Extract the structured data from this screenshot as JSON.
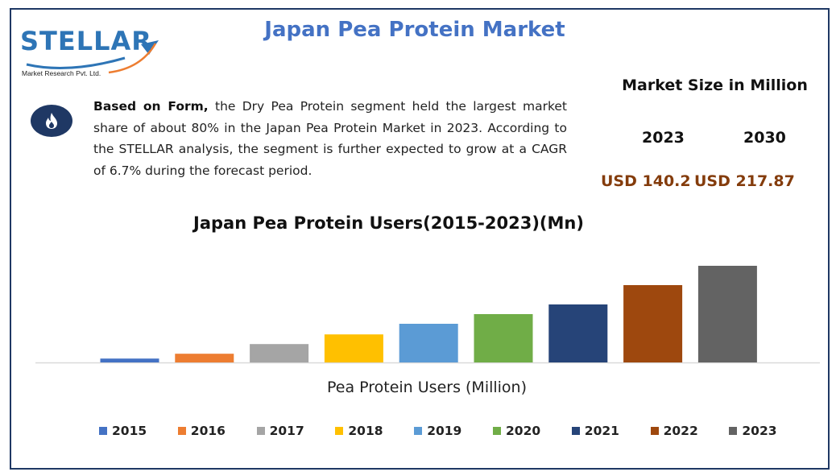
{
  "header": {
    "logo_text": "STELLAR",
    "logo_subtext": "Market Research Pvt. Ltd.",
    "title": "Japan Pea Protein Market"
  },
  "description": {
    "bold_lead": "Based on Form,",
    "text": " the Dry Pea Protein segment held the largest market share of about 80% in the Japan Pea Protein Market in 2023.  According to the STELLAR analysis, the segment is further expected to grow at a CAGR of 6.7% during the forecast period.",
    "icon": "flame-icon"
  },
  "market_size": {
    "title": "Market Size in Million",
    "years": [
      "2023",
      "2030"
    ],
    "values": [
      "USD 140.2",
      "USD 217.87"
    ],
    "value_color": "#843c0c"
  },
  "chart_data": {
    "type": "bar",
    "title": "Japan Pea Protein Users(2015-2023)(Mn)",
    "xlabel": "Pea Protein Users (Million)",
    "ylabel": "",
    "categories": [
      "2015",
      "2016",
      "2017",
      "2018",
      "2019",
      "2020",
      "2021",
      "2022",
      "2023"
    ],
    "values": [
      4,
      9,
      19,
      29,
      40,
      50,
      60,
      80,
      100
    ],
    "colors": [
      "#4472c4",
      "#ed7d31",
      "#a5a5a5",
      "#ffc000",
      "#5b9bd5",
      "#70ad47",
      "#264478",
      "#9e480e",
      "#636363"
    ],
    "ylim": [
      0,
      100
    ],
    "grid": false,
    "legend": "bottom"
  }
}
